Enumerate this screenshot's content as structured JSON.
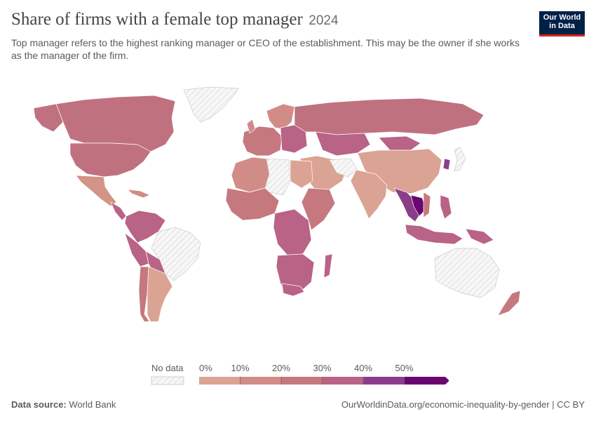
{
  "header": {
    "title": "Share of firms with a female top manager",
    "year": "2024",
    "subtitle": "Top manager refers to the highest ranking manager or CEO of the establishment. This may be the owner if she works as the manager of the firm."
  },
  "logo": {
    "line1": "Our World",
    "line2": "in Data"
  },
  "legend": {
    "no_data_label": "No data",
    "ticks": [
      "0%",
      "10%",
      "20%",
      "30%",
      "40%",
      "50%"
    ],
    "colors": [
      "#dba393",
      "#d18c88",
      "#c6787f",
      "#b96386",
      "#8b3d8a",
      "#6a066f"
    ]
  },
  "colors": {
    "no_data_fill": "#ebebeb",
    "border": "#ffffff",
    "brand": "#002147",
    "brand_accent": "#ce261e"
  },
  "footer": {
    "source_label": "Data source:",
    "source": "World Bank",
    "url": "OurWorldinData.org/economic-inequality-by-gender | CC BY"
  }
}
